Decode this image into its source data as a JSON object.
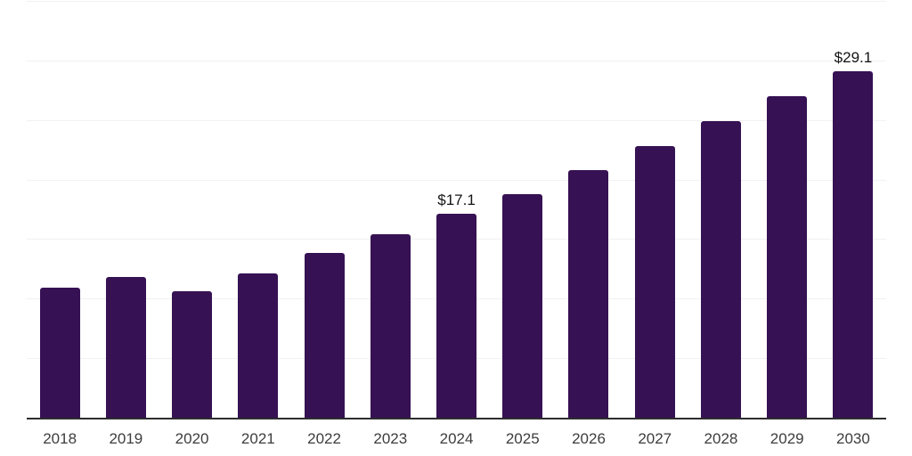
{
  "chart_data": {
    "type": "bar",
    "title": "",
    "xlabel": "",
    "ylabel": "",
    "categories": [
      "2018",
      "2019",
      "2020",
      "2021",
      "2022",
      "2023",
      "2024",
      "2025",
      "2026",
      "2027",
      "2028",
      "2029",
      "2030"
    ],
    "values": [
      10.9,
      11.8,
      10.6,
      12.1,
      13.8,
      15.4,
      17.1,
      18.8,
      20.8,
      22.8,
      24.9,
      27.0,
      29.1
    ],
    "bar_labels": [
      "",
      "",
      "",
      "",
      "",
      "",
      "$17.1",
      "",
      "",
      "",
      "",
      "",
      "$29.1"
    ],
    "ylim": [
      0,
      35
    ],
    "grid_step": 5,
    "grid": true,
    "legend": false,
    "y_axis_labels_visible": false,
    "colors": {
      "bar": "#361153",
      "gridline": "#f2f1f3",
      "axis_line": "#2d2d2d",
      "tick_label": "#3d3d3d",
      "value_label": "#141414",
      "background": "#ffffff"
    }
  }
}
